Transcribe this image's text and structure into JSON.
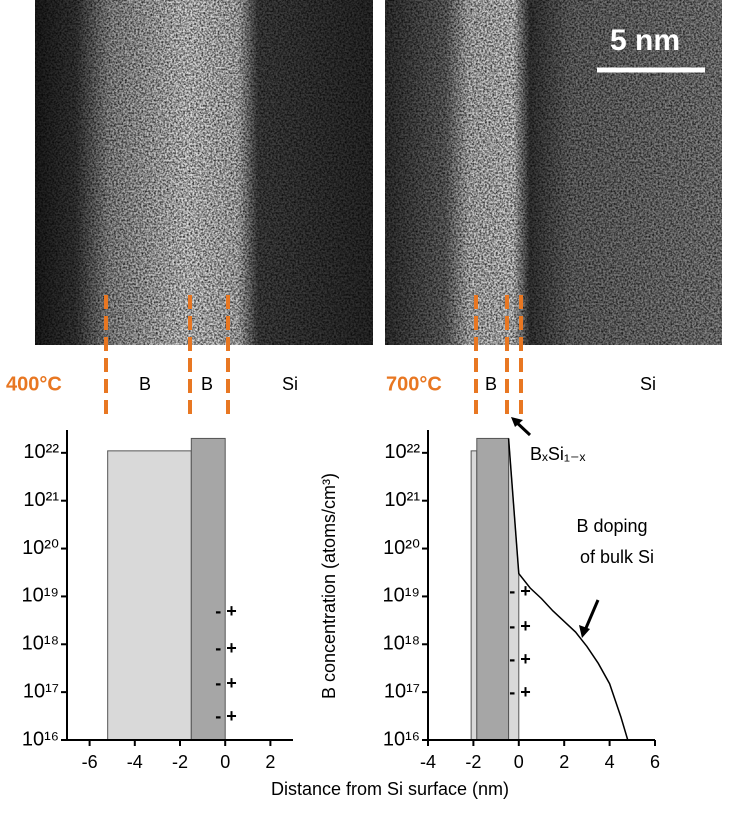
{
  "xlabel": "Distance from Si surface (nm)",
  "chart_data": [
    {
      "type": "step",
      "temperature": "400°C",
      "layer_labels": [
        "B",
        "B",
        "Si"
      ],
      "xlim": [
        -7,
        3
      ],
      "xticks": [
        -6,
        -4,
        -2,
        0,
        2
      ],
      "yscale": "log",
      "ylim": [
        1e+16,
        3e+22
      ],
      "yticks": [
        {
          "value": 1e+16,
          "label": "10¹⁶"
        },
        {
          "value": 1e+17,
          "label": "10¹⁷"
        },
        {
          "value": 1e+18,
          "label": "10¹⁸"
        },
        {
          "value": 1e+19,
          "label": "10¹⁹"
        },
        {
          "value": 1e+20,
          "label": "10²⁰"
        },
        {
          "value": 1e+21,
          "label": "10²¹"
        },
        {
          "value": 1e+22,
          "label": "10²²"
        }
      ],
      "regions": [
        {
          "x": [
            -5.2,
            -1.5
          ],
          "value": 1.1e+22,
          "color": "#d9d9d9"
        },
        {
          "x": [
            -1.5,
            0
          ],
          "value": 2e+22,
          "color": "#a6a6a6"
        }
      ],
      "charge_labels": [
        "- +",
        "- +",
        "- +",
        "- +"
      ]
    },
    {
      "type": "step",
      "temperature": "700°C",
      "layer_labels": [
        "B",
        "Si"
      ],
      "scale_bar": "5 nm",
      "ylabel": "B concentration (atoms/cm³)",
      "xlim": [
        -4,
        6
      ],
      "xticks": [
        -4,
        -2,
        0,
        2,
        4,
        6
      ],
      "yscale": "log",
      "ylim": [
        1e+16,
        3e+22
      ],
      "yticks": [
        {
          "value": 1e+16,
          "label": "10¹⁶"
        },
        {
          "value": 1e+17,
          "label": "10¹⁷"
        },
        {
          "value": 1e+18,
          "label": "10¹⁸"
        },
        {
          "value": 1e+19,
          "label": "10¹⁹"
        },
        {
          "value": 1e+20,
          "label": "10²⁰"
        },
        {
          "value": 1e+21,
          "label": "10²¹"
        },
        {
          "value": 1e+22,
          "label": "10²²"
        }
      ],
      "regions": [
        {
          "x": [
            -2.1,
            -1.85
          ],
          "value": 1.1e+22,
          "color": "#d9d9d9"
        },
        {
          "x": [
            -1.85,
            -0.45
          ],
          "value": 2e+22,
          "color": "#a6a6a6"
        }
      ],
      "series": [
        {
          "color": "#000000",
          "x": [
            -0.45,
            0,
            0.5,
            1,
            1.5,
            2,
            2.5,
            3,
            3.5,
            4,
            4.5,
            4.8
          ],
          "values": [
            2e+22,
            3e+19,
            1.5e+19,
            9e+18,
            5e+18,
            3e+18,
            1.8e+18,
            9e+17,
            4e+17,
            1.5e+17,
            3e+16,
            1e+16
          ]
        }
      ],
      "charge_labels": [
        "- +",
        "- +",
        "- +",
        "- +"
      ],
      "annotations": [
        "BₓSi₁₋ₓ",
        "B doping",
        "of bulk Si"
      ]
    }
  ]
}
